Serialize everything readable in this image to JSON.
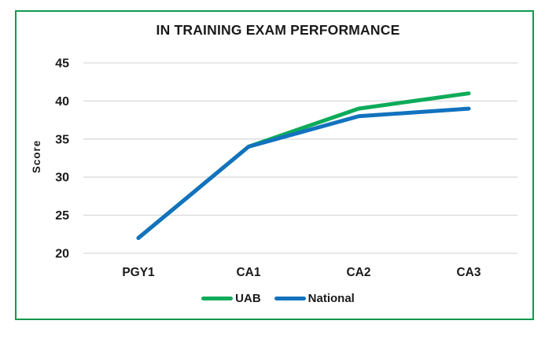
{
  "chart_data": {
    "type": "line",
    "title": "IN TRAINING EXAM PERFORMANCE",
    "ylabel": "Score",
    "xlabel": "",
    "categories": [
      "PGY1",
      "CA1",
      "CA2",
      "CA3"
    ],
    "series": [
      {
        "name": "UAB",
        "color": "#0CAB5A",
        "values": [
          22,
          34,
          39,
          41
        ]
      },
      {
        "name": "National",
        "color": "#1272BE",
        "values": [
          22,
          34,
          38,
          39
        ]
      }
    ],
    "ylim": [
      20,
      45
    ],
    "yticks": [
      20,
      25,
      30,
      35,
      40,
      45
    ],
    "grid": true,
    "gridline_color": "#D9D9D9",
    "legend_position": "bottom",
    "frame_border_color": "#12994E",
    "text_color": "#1A1A1A"
  }
}
